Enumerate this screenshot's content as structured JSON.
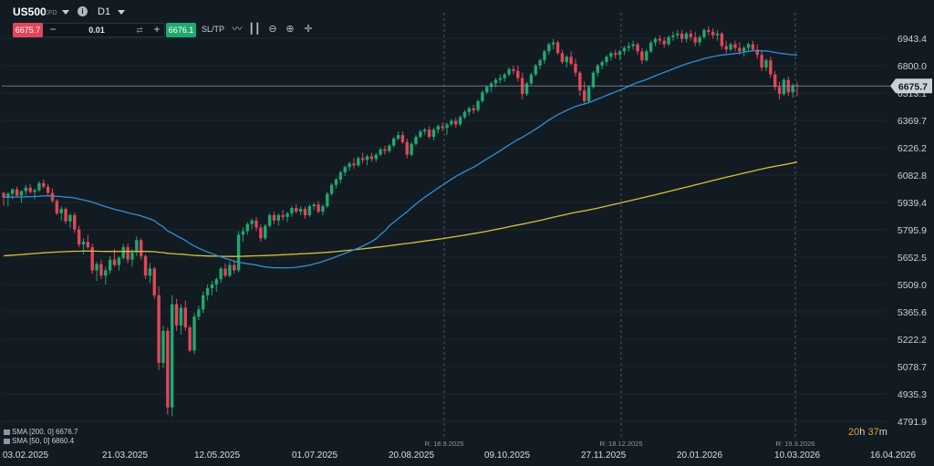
{
  "header": {
    "symbol": "US500",
    "symbol_type": "CFD",
    "info_icon": "i",
    "timeframe": "D1"
  },
  "trade": {
    "sell_price": "6675.7",
    "minus": "−",
    "lot_size": "0.01",
    "plus": "+",
    "buy_price": "6676.1",
    "sltp_label": "SL/TP"
  },
  "toolbar": {
    "icons": [
      "line-chart-icon",
      "candles-icon",
      "zoom-out-icon",
      "zoom-in-icon",
      "crosshair-icon"
    ]
  },
  "indicators": [
    {
      "label": "SMA [200, 0] 6676.7"
    },
    {
      "label": "SMA [50, 0] 6860.4"
    }
  ],
  "countdown": {
    "hours": "20",
    "h": "h",
    "minutes": "37",
    "m": "m"
  },
  "colors": {
    "background": "#131b22",
    "up": "#1fa870",
    "down": "#e0465a",
    "sma200": "#d4c23a",
    "sma50": "#2f8fd8",
    "price_line": "#8a96a3",
    "countdown": "#e0a030"
  },
  "chart_data": {
    "type": "candlestick",
    "y_ticks": [
      "6943.4",
      "6800.0",
      "6513.1",
      "6369.7",
      "6226.2",
      "6082.8",
      "5939.4",
      "5795.9",
      "5652.5",
      "5509.0",
      "5365.6",
      "5222.2",
      "5078.7",
      "4935.3",
      "4791.9"
    ],
    "x_ticks": [
      "03.02.2025",
      "21.03.2025",
      "12.05.2025",
      "01.07.2025",
      "20.08.2025",
      "09.10.2025",
      "27.11.2025",
      "20.01.2026",
      "10.03.2026",
      "16.04.2026"
    ],
    "current_price": "6675.7",
    "markers": [
      "R: 18.9.2025",
      "R: 18.12.2025",
      "R: 19.3.2026"
    ],
    "ylim": [
      4791.9,
      6943.4
    ],
    "series": [
      {
        "name": "SMA [200, 0]",
        "value": 6676.7
      },
      {
        "name": "SMA [50, 0]",
        "value": 6860.4
      }
    ],
    "candles": [
      [
        6075,
        6080,
        6005,
        6050
      ],
      [
        6050,
        6080,
        6000,
        6070
      ],
      [
        6070,
        6100,
        6040,
        6095
      ],
      [
        6095,
        6110,
        6050,
        6060
      ],
      [
        6060,
        6090,
        6020,
        6085
      ],
      [
        6085,
        6120,
        6060,
        6105
      ],
      [
        6105,
        6125,
        6070,
        6080
      ],
      [
        6080,
        6100,
        6040,
        6090
      ],
      [
        6090,
        6140,
        6080,
        6130
      ],
      [
        6130,
        6150,
        6100,
        6110
      ],
      [
        6110,
        6125,
        6060,
        6075
      ],
      [
        6075,
        6100,
        6020,
        6030
      ],
      [
        6030,
        6040,
        5950,
        5960
      ],
      [
        5960,
        6000,
        5920,
        5985
      ],
      [
        5985,
        5995,
        5900,
        5915
      ],
      [
        5915,
        5960,
        5880,
        5950
      ],
      [
        5950,
        5965,
        5850,
        5870
      ],
      [
        5870,
        5890,
        5770,
        5785
      ],
      [
        5785,
        5820,
        5730,
        5800
      ],
      [
        5800,
        5840,
        5760,
        5770
      ],
      [
        5770,
        5790,
        5620,
        5640
      ],
      [
        5640,
        5690,
        5580,
        5675
      ],
      [
        5675,
        5700,
        5590,
        5610
      ],
      [
        5610,
        5660,
        5560,
        5640
      ],
      [
        5640,
        5720,
        5620,
        5700
      ],
      [
        5700,
        5760,
        5660,
        5670
      ],
      [
        5670,
        5720,
        5640,
        5710
      ],
      [
        5710,
        5790,
        5700,
        5770
      ],
      [
        5770,
        5790,
        5680,
        5700
      ],
      [
        5700,
        5760,
        5660,
        5740
      ],
      [
        5740,
        5830,
        5720,
        5810
      ],
      [
        5810,
        5820,
        5700,
        5720
      ],
      [
        5720,
        5730,
        5590,
        5610
      ],
      [
        5610,
        5680,
        5570,
        5650
      ],
      [
        5650,
        5660,
        5480,
        5500
      ],
      [
        5500,
        5550,
        5080,
        5120
      ],
      [
        5120,
        5330,
        5090,
        5300
      ],
      [
        5300,
        5320,
        4830,
        4870
      ],
      [
        4870,
        5500,
        4820,
        5450
      ],
      [
        5450,
        5480,
        5300,
        5330
      ],
      [
        5330,
        5450,
        5280,
        5430
      ],
      [
        5430,
        5470,
        5300,
        5320
      ],
      [
        5320,
        5330,
        5180,
        5190
      ],
      [
        5190,
        5400,
        5170,
        5380
      ],
      [
        5380,
        5440,
        5360,
        5420
      ],
      [
        5420,
        5520,
        5400,
        5500
      ],
      [
        5500,
        5560,
        5470,
        5540
      ],
      [
        5540,
        5580,
        5500,
        5560
      ],
      [
        5560,
        5600,
        5520,
        5590
      ],
      [
        5590,
        5660,
        5570,
        5650
      ],
      [
        5650,
        5680,
        5600,
        5610
      ],
      [
        5610,
        5690,
        5600,
        5670
      ],
      [
        5670,
        5700,
        5620,
        5640
      ],
      [
        5640,
        5860,
        5630,
        5840
      ],
      [
        5840,
        5880,
        5800,
        5860
      ],
      [
        5860,
        5910,
        5840,
        5900
      ],
      [
        5900,
        5930,
        5870,
        5920
      ],
      [
        5920,
        5940,
        5860,
        5880
      ],
      [
        5880,
        5900,
        5800,
        5820
      ],
      [
        5820,
        5900,
        5810,
        5890
      ],
      [
        5890,
        5960,
        5880,
        5950
      ],
      [
        5950,
        5970,
        5900,
        5920
      ],
      [
        5920,
        5960,
        5890,
        5950
      ],
      [
        5950,
        5980,
        5920,
        5940
      ],
      [
        5940,
        5970,
        5910,
        5960
      ],
      [
        5960,
        6000,
        5940,
        5990
      ],
      [
        5990,
        6010,
        5960,
        5970
      ],
      [
        5970,
        6000,
        5950,
        5985
      ],
      [
        5985,
        6000,
        5930,
        5950
      ],
      [
        5950,
        6010,
        5940,
        6000
      ],
      [
        6000,
        6020,
        5980,
        6010
      ],
      [
        6010,
        6030,
        5960,
        5970
      ],
      [
        5970,
        6010,
        5950,
        6000
      ],
      [
        6000,
        6080,
        5990,
        6070
      ],
      [
        6070,
        6130,
        6060,
        6120
      ],
      [
        6120,
        6160,
        6100,
        6150
      ],
      [
        6150,
        6200,
        6130,
        6190
      ],
      [
        6190,
        6230,
        6170,
        6220
      ],
      [
        6220,
        6250,
        6200,
        6240
      ],
      [
        6240,
        6270,
        6210,
        6230
      ],
      [
        6230,
        6280,
        6220,
        6270
      ],
      [
        6270,
        6300,
        6240,
        6260
      ],
      [
        6260,
        6290,
        6230,
        6280
      ],
      [
        6280,
        6300,
        6250,
        6265
      ],
      [
        6265,
        6300,
        6250,
        6290
      ],
      [
        6290,
        6330,
        6280,
        6320
      ],
      [
        6320,
        6340,
        6290,
        6310
      ],
      [
        6310,
        6350,
        6300,
        6340
      ],
      [
        6340,
        6390,
        6330,
        6380
      ],
      [
        6380,
        6420,
        6370,
        6400
      ],
      [
        6400,
        6420,
        6350,
        6360
      ],
      [
        6360,
        6380,
        6270,
        6290
      ],
      [
        6290,
        6360,
        6280,
        6350
      ],
      [
        6350,
        6400,
        6340,
        6390
      ],
      [
        6390,
        6430,
        6380,
        6420
      ],
      [
        6420,
        6440,
        6400,
        6430
      ],
      [
        6430,
        6450,
        6380,
        6390
      ],
      [
        6390,
        6440,
        6370,
        6430
      ],
      [
        6430,
        6460,
        6410,
        6450
      ],
      [
        6450,
        6470,
        6420,
        6440
      ],
      [
        6440,
        6470,
        6400,
        6460
      ],
      [
        6460,
        6490,
        6450,
        6480
      ],
      [
        6480,
        6500,
        6440,
        6460
      ],
      [
        6460,
        6510,
        6450,
        6500
      ],
      [
        6500,
        6540,
        6490,
        6530
      ],
      [
        6530,
        6560,
        6510,
        6550
      ],
      [
        6550,
        6570,
        6520,
        6540
      ],
      [
        6540,
        6600,
        6530,
        6590
      ],
      [
        6590,
        6650,
        6580,
        6640
      ],
      [
        6640,
        6680,
        6630,
        6670
      ],
      [
        6670,
        6700,
        6640,
        6690
      ],
      [
        6690,
        6720,
        6670,
        6710
      ],
      [
        6710,
        6740,
        6690,
        6720
      ],
      [
        6720,
        6750,
        6700,
        6740
      ],
      [
        6740,
        6780,
        6730,
        6770
      ],
      [
        6770,
        6790,
        6740,
        6760
      ],
      [
        6760,
        6790,
        6700,
        6720
      ],
      [
        6720,
        6750,
        6600,
        6630
      ],
      [
        6630,
        6700,
        6620,
        6690
      ],
      [
        6690,
        6750,
        6680,
        6740
      ],
      [
        6740,
        6800,
        6730,
        6790
      ],
      [
        6790,
        6830,
        6770,
        6820
      ],
      [
        6820,
        6880,
        6800,
        6870
      ],
      [
        6870,
        6920,
        6850,
        6910
      ],
      [
        6910,
        6940,
        6880,
        6920
      ],
      [
        6920,
        6930,
        6850,
        6860
      ],
      [
        6860,
        6880,
        6800,
        6810
      ],
      [
        6810,
        6850,
        6780,
        6840
      ],
      [
        6840,
        6870,
        6790,
        6800
      ],
      [
        6800,
        6830,
        6730,
        6750
      ],
      [
        6750,
        6760,
        6620,
        6650
      ],
      [
        6650,
        6700,
        6570,
        6590
      ],
      [
        6590,
        6680,
        6580,
        6670
      ],
      [
        6670,
        6760,
        6660,
        6750
      ],
      [
        6750,
        6800,
        6730,
        6790
      ],
      [
        6790,
        6820,
        6770,
        6810
      ],
      [
        6810,
        6850,
        6790,
        6840
      ],
      [
        6840,
        6870,
        6820,
        6860
      ],
      [
        6860,
        6880,
        6830,
        6850
      ],
      [
        6850,
        6880,
        6820,
        6870
      ],
      [
        6870,
        6900,
        6850,
        6890
      ],
      [
        6890,
        6920,
        6870,
        6900
      ],
      [
        6900,
        6930,
        6880,
        6910
      ],
      [
        6910,
        6920,
        6850,
        6870
      ],
      [
        6870,
        6890,
        6800,
        6820
      ],
      [
        6820,
        6880,
        6810,
        6870
      ],
      [
        6870,
        6930,
        6860,
        6920
      ],
      [
        6920,
        6950,
        6900,
        6940
      ],
      [
        6940,
        6960,
        6910,
        6930
      ],
      [
        6930,
        6950,
        6890,
        6910
      ],
      [
        6910,
        6960,
        6900,
        6950
      ],
      [
        6950,
        6980,
        6930,
        6960
      ],
      [
        6960,
        6990,
        6940,
        6970
      ],
      [
        6970,
        6990,
        6920,
        6940
      ],
      [
        6940,
        6980,
        6920,
        6970
      ],
      [
        6970,
        6990,
        6930,
        6950
      ],
      [
        6950,
        6980,
        6900,
        6920
      ],
      [
        6920,
        6960,
        6900,
        6950
      ],
      [
        6950,
        7000,
        6940,
        6990
      ],
      [
        6990,
        7010,
        6960,
        6980
      ],
      [
        6980,
        7000,
        6940,
        6960
      ],
      [
        6960,
        6990,
        6930,
        6970
      ],
      [
        6970,
        6980,
        6880,
        6900
      ],
      [
        6900,
        6930,
        6860,
        6880
      ],
      [
        6880,
        6920,
        6870,
        6910
      ],
      [
        6910,
        6930,
        6870,
        6890
      ],
      [
        6890,
        6920,
        6850,
        6870
      ],
      [
        6870,
        6900,
        6840,
        6890
      ],
      [
        6890,
        6920,
        6870,
        6910
      ],
      [
        6910,
        6930,
        6870,
        6880
      ],
      [
        6880,
        6910,
        6830,
        6850
      ],
      [
        6850,
        6870,
        6760,
        6780
      ],
      [
        6780,
        6830,
        6760,
        6820
      ],
      [
        6820,
        6840,
        6720,
        6740
      ],
      [
        6740,
        6760,
        6650,
        6670
      ],
      [
        6670,
        6700,
        6600,
        6630
      ],
      [
        6630,
        6720,
        6620,
        6710
      ],
      [
        6710,
        6730,
        6620,
        6640
      ],
      [
        6640,
        6690,
        6610,
        6680
      ],
      [
        6680,
        6700,
        6620,
        6675.7
      ]
    ]
  }
}
